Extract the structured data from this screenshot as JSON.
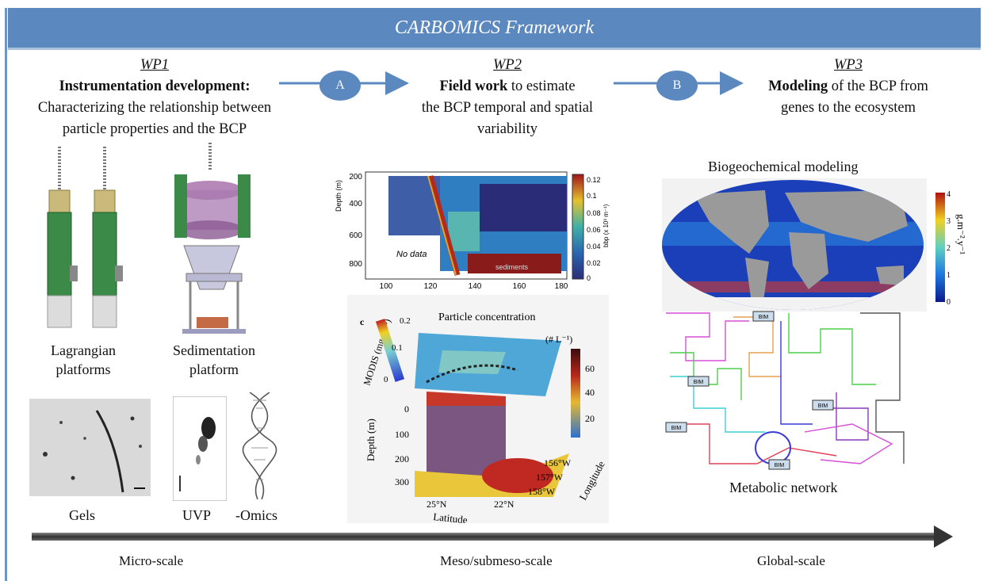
{
  "header": {
    "title": "CARBOMICS Framework"
  },
  "wp1": {
    "title": "WP1",
    "bold": "Instrumentation development:",
    "line1": "Characterizing the relationship between",
    "line2": "particle properties and the BCP"
  },
  "wp2": {
    "title": "WP2",
    "bold": "Field work",
    "rest1": " to estimate",
    "line2": "the BCP temporal and spatial",
    "line3": "variability"
  },
  "wp3": {
    "title": "WP3",
    "bold": "Modeling",
    "rest1": " of the BCP from",
    "line2": "genes to the ecosystem"
  },
  "links": {
    "a": "A",
    "b": "B"
  },
  "labels": {
    "lagrangian_1": "Lagrangian",
    "lagrangian_2": "platforms",
    "sedimentation_1": "Sedimentation",
    "sedimentation_2": "platform",
    "gels": "Gels",
    "uvp": "UVP",
    "omics": "-Omics",
    "biogeo": "Biogeochemical modeling",
    "metabolic": "Metabolic network"
  },
  "section_plot": {
    "ylabel": "Depth (m)",
    "yticks": [
      "200",
      "400",
      "600",
      "800"
    ],
    "xticks": [
      "100",
      "120",
      "140",
      "160",
      "180"
    ],
    "no_data": "No data",
    "sediments": "sediments",
    "cbar_ticks": [
      "0.12",
      "0.1",
      "0.08",
      "0.06",
      "0.04",
      "0.02",
      "0"
    ],
    "cbar_label": "bbp (x 10³ m⁻¹)"
  },
  "particle_plot": {
    "panel": "c",
    "title": "Particle concentration",
    "modis_label": "MODIS (mg m⁻³)",
    "modis_ticks": [
      "0.2",
      "0.1",
      "0"
    ],
    "unit": "(# L⁻¹)",
    "cbar_ticks": [
      "60",
      "40",
      "20"
    ],
    "depth_label": "Depth (m)",
    "depth_ticks": [
      "0",
      "100",
      "200",
      "300"
    ],
    "lat_ticks": [
      "25°N",
      "22°N"
    ],
    "lat_label": "Latitude",
    "lon_ticks": [
      "156°W",
      "157°W",
      "158°W"
    ],
    "lon_label": "Longitude"
  },
  "map": {
    "cbar_ticks": [
      "4",
      "3",
      "2",
      "1",
      "0"
    ],
    "unit": "g.m⁻².y⁻¹"
  },
  "network": {
    "tag": "BIM"
  },
  "scale": {
    "micro": "Micro-scale",
    "meso": "Meso/submeso-scale",
    "global": "Global-scale"
  },
  "colors": {
    "accent": "#5a88bf",
    "bar_dark": "#333333",
    "instrument_green": "#2f7d3a"
  }
}
